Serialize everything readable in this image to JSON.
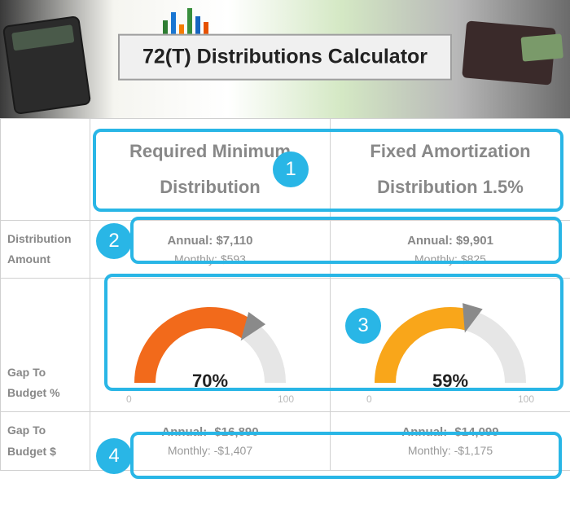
{
  "banner": {
    "title": "72(T) Distributions Calculator"
  },
  "columns": {
    "col1_header": "Required Minimum Distribution",
    "col2_header": "Fixed Amortization Distribution 1.5%"
  },
  "rows": {
    "dist_amount_label": "Distribution Amount",
    "gap_pct_label": "Gap To Budget %",
    "gap_dollar_label": "Gap To Budget $"
  },
  "dist": {
    "col1_annual": "Annual: $7,110",
    "col1_monthly": "Monthly: $593",
    "col2_annual": "Annual: $9,901",
    "col2_monthly": "Monthly: $825"
  },
  "gauges": {
    "g1": {
      "percent_label": "70%",
      "percent": 70,
      "color": "#f26a1b",
      "track_color": "#e6e6e6",
      "needle_color": "#8a8a8a",
      "scale_min": "0",
      "scale_max": "100"
    },
    "g2": {
      "percent_label": "59%",
      "percent": 59,
      "color": "#f9a61a",
      "track_color": "#e6e6e6",
      "needle_color": "#8a8a8a",
      "scale_min": "0",
      "scale_max": "100"
    }
  },
  "gap_dollar": {
    "col1_annual": "Annual: -$16,890",
    "col1_monthly": "Monthly: -$1,407",
    "col2_annual": "Annual: -$14,099",
    "col2_monthly": "Monthly: -$1,175"
  },
  "annotations": {
    "a1": "1",
    "a2": "2",
    "a3": "3",
    "a4": "4",
    "color": "#29b6e6"
  }
}
